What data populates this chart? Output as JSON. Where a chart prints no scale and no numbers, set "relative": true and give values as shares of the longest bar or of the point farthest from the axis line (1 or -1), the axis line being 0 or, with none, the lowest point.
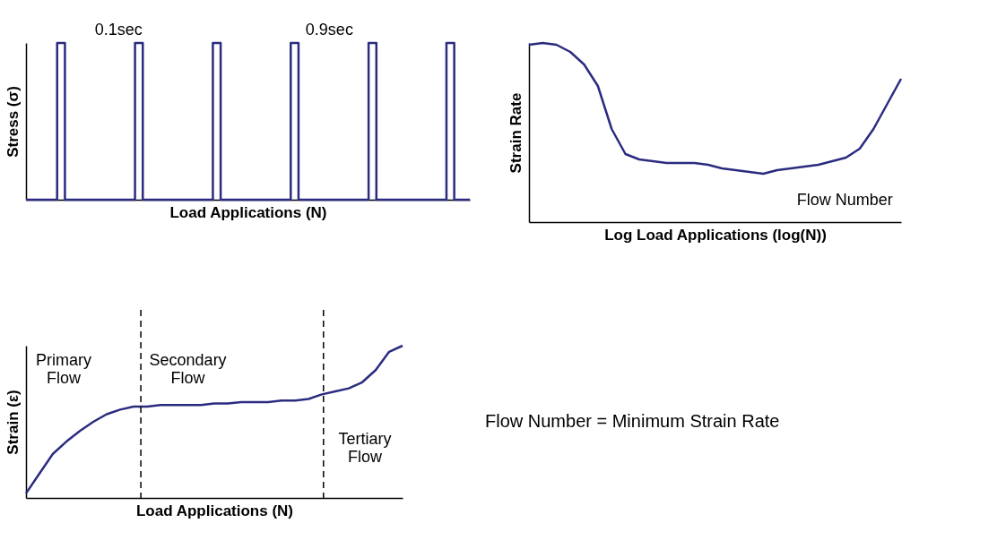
{
  "chart_data": [
    {
      "type": "step",
      "relative": true,
      "xlabel": "Load Applications (N)",
      "ylabel": "Stress (σ)",
      "annotations": [
        "0.1sec",
        "0.9sec"
      ],
      "categories": [
        null,
        null,
        null,
        null,
        null,
        null,
        null,
        null,
        null,
        null,
        null,
        null,
        null,
        null,
        null,
        null,
        null,
        null,
        null,
        null,
        null,
        null,
        null,
        null,
        null,
        null,
        null,
        null,
        null,
        null,
        null,
        null,
        null,
        null,
        null,
        null,
        null,
        null,
        null,
        null,
        null,
        null,
        null,
        null,
        null,
        null,
        null,
        null,
        null,
        null,
        null,
        null,
        null,
        null,
        null,
        null,
        null,
        null
      ],
      "series": [
        {
          "color": "#2b2b80",
          "values": [
            0,
            0,
            0,
            0,
            1,
            0,
            0,
            0,
            0,
            0,
            0,
            0,
            0,
            0,
            1,
            0,
            0,
            0,
            0,
            0,
            0,
            0,
            0,
            0,
            1,
            0,
            0,
            0,
            0,
            0,
            0,
            0,
            0,
            0,
            1,
            0,
            0,
            0,
            0,
            0,
            0,
            0,
            0,
            0,
            1,
            0,
            0,
            0,
            0,
            0,
            0,
            0,
            0,
            0,
            1,
            0,
            0,
            0
          ]
        }
      ]
    },
    {
      "type": "line",
      "relative": true,
      "xlabel": "Log Load Applications (log(N))",
      "ylabel": "Strain Rate",
      "annotations": [
        "Flow Number"
      ],
      "categories": [
        null,
        null,
        null,
        null,
        null,
        null,
        null,
        null,
        null,
        null,
        null,
        null,
        null,
        null,
        null,
        null,
        null,
        null,
        null,
        null,
        null,
        null,
        null,
        null,
        null,
        null,
        null,
        null
      ],
      "series": [
        {
          "color": "#2b2b80",
          "values": [
            0.99,
            1.0,
            0.99,
            0.95,
            0.88,
            0.76,
            0.52,
            0.38,
            0.35,
            0.34,
            0.33,
            0.33,
            0.33,
            0.32,
            0.3,
            0.29,
            0.28,
            0.27,
            0.29,
            0.3,
            0.31,
            0.32,
            0.34,
            0.36,
            0.41,
            0.52,
            0.66,
            0.8
          ]
        }
      ]
    },
    {
      "type": "line",
      "relative": true,
      "xlabel": "Load Applications (N)",
      "ylabel": "Strain (ε)",
      "annotations": [
        "Primary\nFlow",
        "Secondary\nFlow",
        "Tertiary\nFlow"
      ],
      "categories": [
        null,
        null,
        null,
        null,
        null,
        null,
        null,
        null,
        null,
        null,
        null,
        null,
        null,
        null,
        null,
        null,
        null,
        null,
        null,
        null,
        null,
        null,
        null,
        null,
        null,
        null,
        null,
        null,
        null
      ],
      "series": [
        {
          "color": "#2b2b80",
          "values": [
            0.03,
            0.16,
            0.29,
            0.37,
            0.44,
            0.5,
            0.55,
            0.58,
            0.6,
            0.6,
            0.61,
            0.61,
            0.61,
            0.61,
            0.62,
            0.62,
            0.63,
            0.63,
            0.63,
            0.64,
            0.64,
            0.65,
            0.68,
            0.7,
            0.72,
            0.76,
            0.84,
            0.96,
            1.0
          ]
        }
      ]
    },
    {
      "type": "other",
      "annotations": [
        "Flow Number = Minimum Strain Rate"
      ]
    }
  ]
}
